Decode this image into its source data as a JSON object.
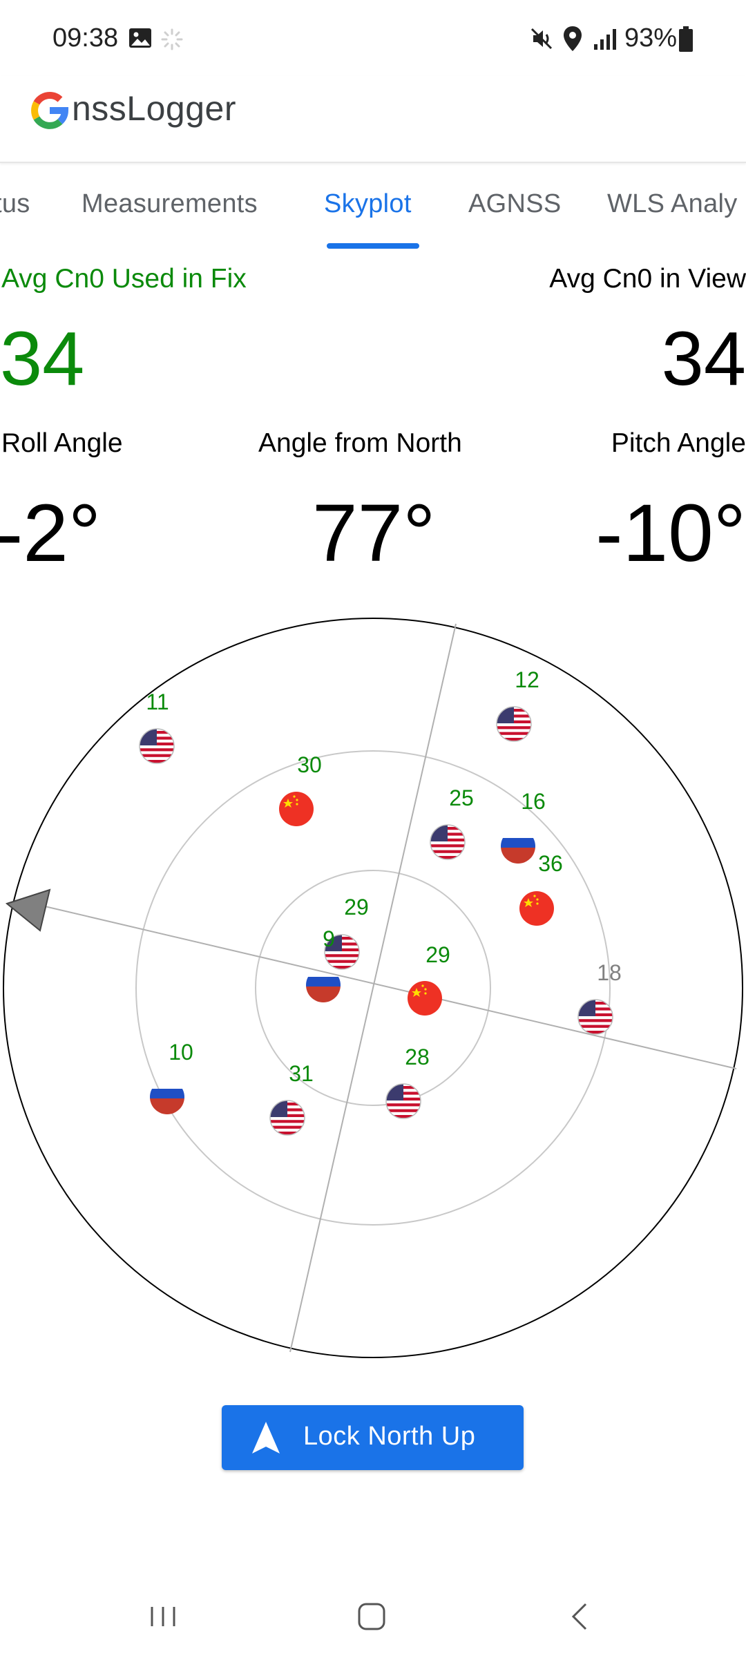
{
  "status_bar": {
    "time": "09:38",
    "battery": "93%",
    "icons": [
      "image-icon",
      "loading-icon",
      "mute-icon",
      "location-icon",
      "signal-icon",
      "battery-icon"
    ]
  },
  "app": {
    "title": "nssLogger",
    "logo_letter": "G"
  },
  "tabs": [
    {
      "label": "tus"
    },
    {
      "label": "Measurements"
    },
    {
      "label": "Skyplot",
      "selected": true
    },
    {
      "label": "AGNSS"
    },
    {
      "label": "WLS Analy"
    }
  ],
  "stats": {
    "avg_used_label": "Avg Cn0 Used in Fix",
    "avg_used_value": "34",
    "avg_view_label": "Avg Cn0 in View",
    "avg_view_value": "34",
    "roll_label": "Roll Angle",
    "roll_value": "-2°",
    "north_label": "Angle from North",
    "north_value": "77°",
    "pitch_label": "Pitch Angle",
    "pitch_value": "-10°"
  },
  "skyplot": {
    "colors": {
      "used": "#0b8a0b",
      "unused": "#808080",
      "ring": "#c8c8c8",
      "outer": "#000000"
    },
    "satellites": [
      {
        "id": "11",
        "flag": "usa",
        "used": true
      },
      {
        "id": "12",
        "flag": "usa",
        "used": true
      },
      {
        "id": "30",
        "flag": "china",
        "used": true
      },
      {
        "id": "25",
        "flag": "usa",
        "used": true
      },
      {
        "id": "16",
        "flag": "russia",
        "used": true
      },
      {
        "id": "36",
        "flag": "china",
        "used": true
      },
      {
        "id": "29",
        "flag": "usa",
        "used": true
      },
      {
        "id": "9",
        "flag": "russia",
        "used": true
      },
      {
        "id": "29",
        "flag": "china",
        "used": true
      },
      {
        "id": "18",
        "flag": "usa",
        "used": false
      },
      {
        "id": "10",
        "flag": "russia",
        "used": true
      },
      {
        "id": "31",
        "flag": "usa",
        "used": true
      },
      {
        "id": "28",
        "flag": "usa",
        "used": true
      }
    ]
  },
  "lock_button": {
    "label": "Lock North Up",
    "icon": "navigation-arrow-icon"
  },
  "nav_bar": {
    "icons": [
      "recent-apps-icon",
      "home-icon",
      "back-icon"
    ]
  }
}
